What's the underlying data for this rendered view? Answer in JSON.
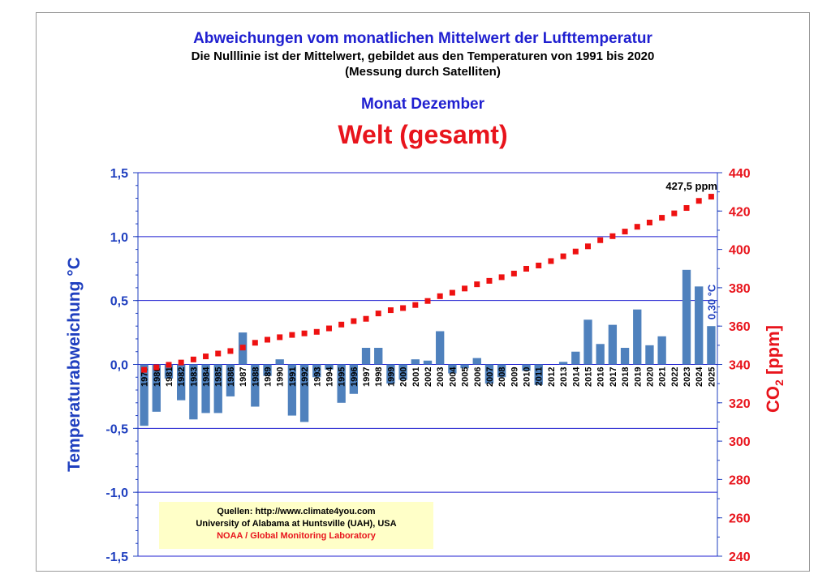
{
  "title": "Abweichungen vom monatlichen Mittelwert der Lufttemperatur",
  "subtitle": "Die Nulllinie ist der Mittelwert, gebildet aus den Temperaturen von 1991 bis 2020",
  "subtitle2": "(Messung durch Satelliten)",
  "month": "Monat Dezember",
  "region": "Welt (gesamt)",
  "sources": {
    "line1": "Quellen: http://www.climate4you.com",
    "line2": "University of Alabama at Huntsville (UAH), USA",
    "line3": "NOAA / Global Monitoring Laboratory"
  },
  "colors": {
    "bar": "#4f81bd",
    "co2": "#ee1111",
    "left_axis": "#1f3fbf",
    "right_axis": "#e8141c",
    "grid": "#1f1fd0"
  },
  "chart_data": {
    "type": "bar",
    "categories": [
      "1979",
      "1980",
      "1981",
      "1982",
      "1983",
      "1984",
      "1985",
      "1986",
      "1987",
      "1988",
      "1989",
      "1990",
      "1991",
      "1992",
      "1993",
      "1994",
      "1995",
      "1996",
      "1997",
      "1998",
      "1999",
      "2000",
      "2001",
      "2002",
      "2003",
      "2004",
      "2005",
      "2006",
      "2007",
      "2008",
      "2009",
      "2010",
      "2011",
      "2012",
      "2013",
      "2014",
      "2015",
      "2016",
      "2017",
      "2018",
      "2019",
      "2020",
      "2021",
      "2022",
      "2023",
      "2024",
      "2025"
    ],
    "series": [
      {
        "axis": "left",
        "kind": "bar",
        "values": [
          -0.48,
          -0.37,
          -0.11,
          -0.28,
          -0.43,
          -0.38,
          -0.38,
          -0.25,
          0.25,
          -0.33,
          -0.09,
          0.04,
          -0.4,
          -0.45,
          -0.1,
          -0.04,
          -0.3,
          -0.23,
          0.13,
          0.13,
          -0.15,
          -0.12,
          0.04,
          0.03,
          0.26,
          -0.07,
          -0.03,
          0.05,
          -0.15,
          -0.1,
          0.0,
          -0.05,
          -0.16,
          0.0,
          0.02,
          0.1,
          0.35,
          0.16,
          0.31,
          0.13,
          0.43,
          0.15,
          0.22,
          0.0,
          0.74,
          0.61,
          0.3
        ]
      },
      {
        "axis": "right",
        "kind": "dotted-line",
        "values": [
          337.2,
          338.5,
          339.8,
          341.0,
          342.6,
          344.2,
          345.7,
          347.0,
          348.8,
          351.3,
          352.9,
          354.2,
          355.4,
          356.2,
          357.0,
          358.8,
          360.8,
          362.6,
          363.8,
          366.6,
          368.3,
          369.4,
          371.0,
          373.1,
          375.6,
          377.4,
          379.6,
          381.8,
          383.6,
          385.5,
          387.4,
          389.9,
          391.6,
          393.9,
          396.4,
          398.9,
          401.6,
          404.8,
          406.9,
          409.3,
          411.8,
          414.0,
          416.5,
          418.8,
          421.6,
          425.3,
          427.5
        ]
      }
    ],
    "ylabel": "Temperaturabweichung °C",
    "ylim": [
      -1.5,
      1.5
    ],
    "yticks": [
      "-1,5",
      "-1,0",
      "-0,5",
      "0,0",
      "0,5",
      "1,0",
      "1,5"
    ],
    "y2label_main": "CO",
    "y2label_sub": "2",
    "y2label_unit": " [ppm]",
    "y2lim": [
      240,
      440
    ],
    "y2ticks": [
      "240",
      "260",
      "280",
      "300",
      "320",
      "340",
      "360",
      "380",
      "400",
      "420",
      "440"
    ],
    "annotation_last_bar": "0,30 °C",
    "annotation_co2": "427,5 ppm",
    "grid": true
  }
}
